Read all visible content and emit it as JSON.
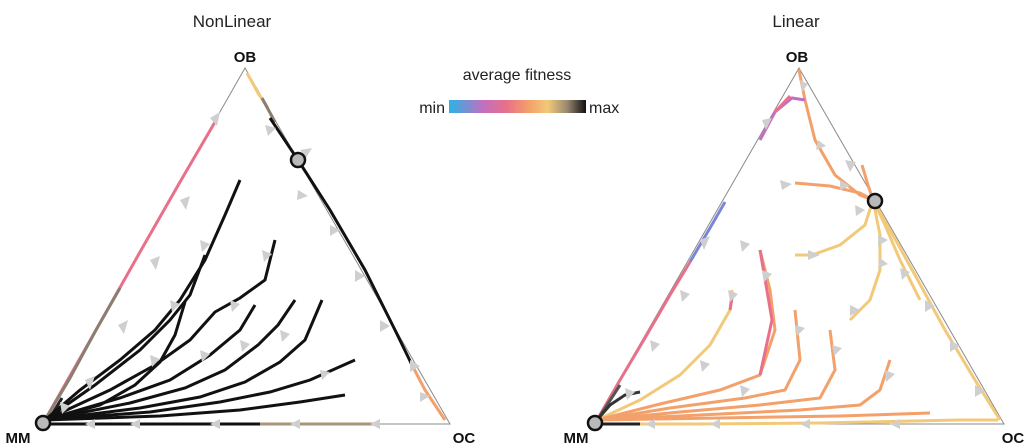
{
  "panels": [
    {
      "title": "NonLinear",
      "vertices": {
        "top": "OB",
        "left": "MM",
        "right": "OC"
      }
    },
    {
      "title": "Linear",
      "vertices": {
        "top": "OB",
        "left": "MM",
        "right": "OC"
      }
    }
  ],
  "legend": {
    "title": "average fitness",
    "min_label": "min",
    "max_label": "max",
    "gradient": [
      "#2ab3e6",
      "#c26fc0",
      "#e8708a",
      "#f3a06a",
      "#f2c978",
      "#c9a070",
      "#111111"
    ]
  },
  "colors": {
    "low": "#2ab3e6",
    "mid": "#e8708a",
    "high_mid": "#f2c978",
    "max": "#111111",
    "arrow": "#cfcfcf",
    "edge": "#8a8a8a"
  }
}
